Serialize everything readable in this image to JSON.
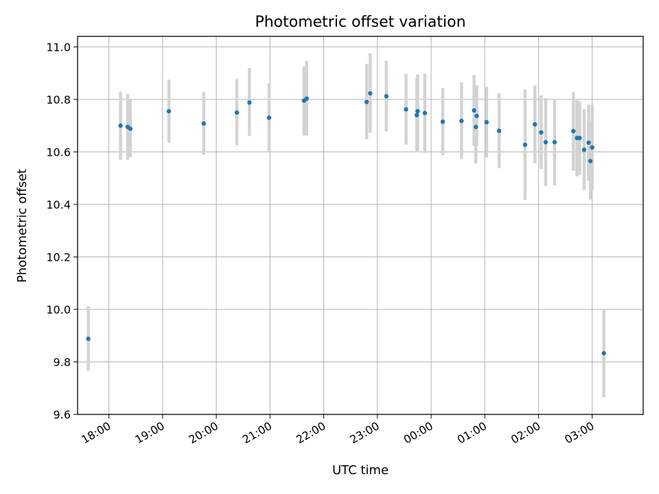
{
  "chart_data": {
    "type": "scatter",
    "title": "Photometric offset variation",
    "xlabel": "UTC time",
    "ylabel": "Photometric offset",
    "x_axis": "time (hours, UTC; crosses midnight)",
    "xlim": [
      "17:25",
      "03:57"
    ],
    "ylim": [
      9.6,
      11.04
    ],
    "grid": true,
    "x_ticks": [
      "18:00",
      "19:00",
      "20:00",
      "21:00",
      "22:00",
      "23:00",
      "00:00",
      "01:00",
      "02:00",
      "03:00"
    ],
    "y_ticks": [
      "9.6",
      "9.8",
      "10.0",
      "10.2",
      "10.4",
      "10.6",
      "10.8",
      "11.0"
    ],
    "point_color": "#1f77b4",
    "errorbar_color": "#d3d3d3",
    "points": [
      {
        "x": "17:37",
        "y": 9.888,
        "lo": 9.766,
        "hi": 10.012
      },
      {
        "x": "18:13",
        "y": 10.7,
        "lo": 10.57,
        "hi": 10.83
      },
      {
        "x": "18:21",
        "y": 10.695,
        "lo": 10.57,
        "hi": 10.82
      },
      {
        "x": "18:24",
        "y": 10.688,
        "lo": 10.58,
        "hi": 10.8
      },
      {
        "x": "19:07",
        "y": 10.755,
        "lo": 10.635,
        "hi": 10.875
      },
      {
        "x": "19:46",
        "y": 10.708,
        "lo": 10.59,
        "hi": 10.828
      },
      {
        "x": "20:23",
        "y": 10.75,
        "lo": 10.625,
        "hi": 10.878
      },
      {
        "x": "20:37",
        "y": 10.788,
        "lo": 10.66,
        "hi": 10.92
      },
      {
        "x": "20:59",
        "y": 10.73,
        "lo": 10.6,
        "hi": 10.862
      },
      {
        "x": "21:38",
        "y": 10.795,
        "lo": 10.662,
        "hi": 10.925
      },
      {
        "x": "21:41",
        "y": 10.803,
        "lo": 10.662,
        "hi": 10.947
      },
      {
        "x": "22:48",
        "y": 10.79,
        "lo": 10.648,
        "hi": 10.935
      },
      {
        "x": "22:52",
        "y": 10.823,
        "lo": 10.672,
        "hi": 10.975
      },
      {
        "x": "23:10",
        "y": 10.812,
        "lo": 10.678,
        "hi": 10.947
      },
      {
        "x": "23:32",
        "y": 10.762,
        "lo": 10.628,
        "hi": 10.897
      },
      {
        "x": "23:44",
        "y": 10.74,
        "lo": 10.598,
        "hi": 10.88
      },
      {
        "x": "23:45",
        "y": 10.755,
        "lo": 10.605,
        "hi": 10.895
      },
      {
        "x": "23:53",
        "y": 10.748,
        "lo": 10.595,
        "hi": 10.898
      },
      {
        "x": "00:13",
        "y": 10.715,
        "lo": 10.588,
        "hi": 10.843
      },
      {
        "x": "00:34",
        "y": 10.718,
        "lo": 10.573,
        "hi": 10.865
      },
      {
        "x": "00:48",
        "y": 10.758,
        "lo": 10.623,
        "hi": 10.893
      },
      {
        "x": "00:50",
        "y": 10.695,
        "lo": 10.555,
        "hi": 10.835
      },
      {
        "x": "00:51",
        "y": 10.737,
        "lo": 10.625,
        "hi": 10.853
      },
      {
        "x": "01:02",
        "y": 10.713,
        "lo": 10.578,
        "hi": 10.848
      },
      {
        "x": "01:16",
        "y": 10.68,
        "lo": 10.538,
        "hi": 10.823
      },
      {
        "x": "01:45",
        "y": 10.627,
        "lo": 10.417,
        "hi": 10.838
      },
      {
        "x": "01:56",
        "y": 10.705,
        "lo": 10.557,
        "hi": 10.853
      },
      {
        "x": "02:03",
        "y": 10.674,
        "lo": 10.535,
        "hi": 10.815
      },
      {
        "x": "02:08",
        "y": 10.637,
        "lo": 10.47,
        "hi": 10.805
      },
      {
        "x": "02:18",
        "y": 10.637,
        "lo": 10.473,
        "hi": 10.8
      },
      {
        "x": "02:39",
        "y": 10.679,
        "lo": 10.528,
        "hi": 10.828
      },
      {
        "x": "02:43",
        "y": 10.653,
        "lo": 10.507,
        "hi": 10.8
      },
      {
        "x": "02:46",
        "y": 10.653,
        "lo": 10.513,
        "hi": 10.792
      },
      {
        "x": "02:51",
        "y": 10.608,
        "lo": 10.455,
        "hi": 10.762
      },
      {
        "x": "02:56",
        "y": 10.635,
        "lo": 10.49,
        "hi": 10.78
      },
      {
        "x": "02:58",
        "y": 10.565,
        "lo": 10.418,
        "hi": 10.712
      },
      {
        "x": "03:00",
        "y": 10.617,
        "lo": 10.455,
        "hi": 10.78
      },
      {
        "x": "03:13",
        "y": 9.833,
        "lo": 9.665,
        "hi": 10.002
      }
    ]
  }
}
